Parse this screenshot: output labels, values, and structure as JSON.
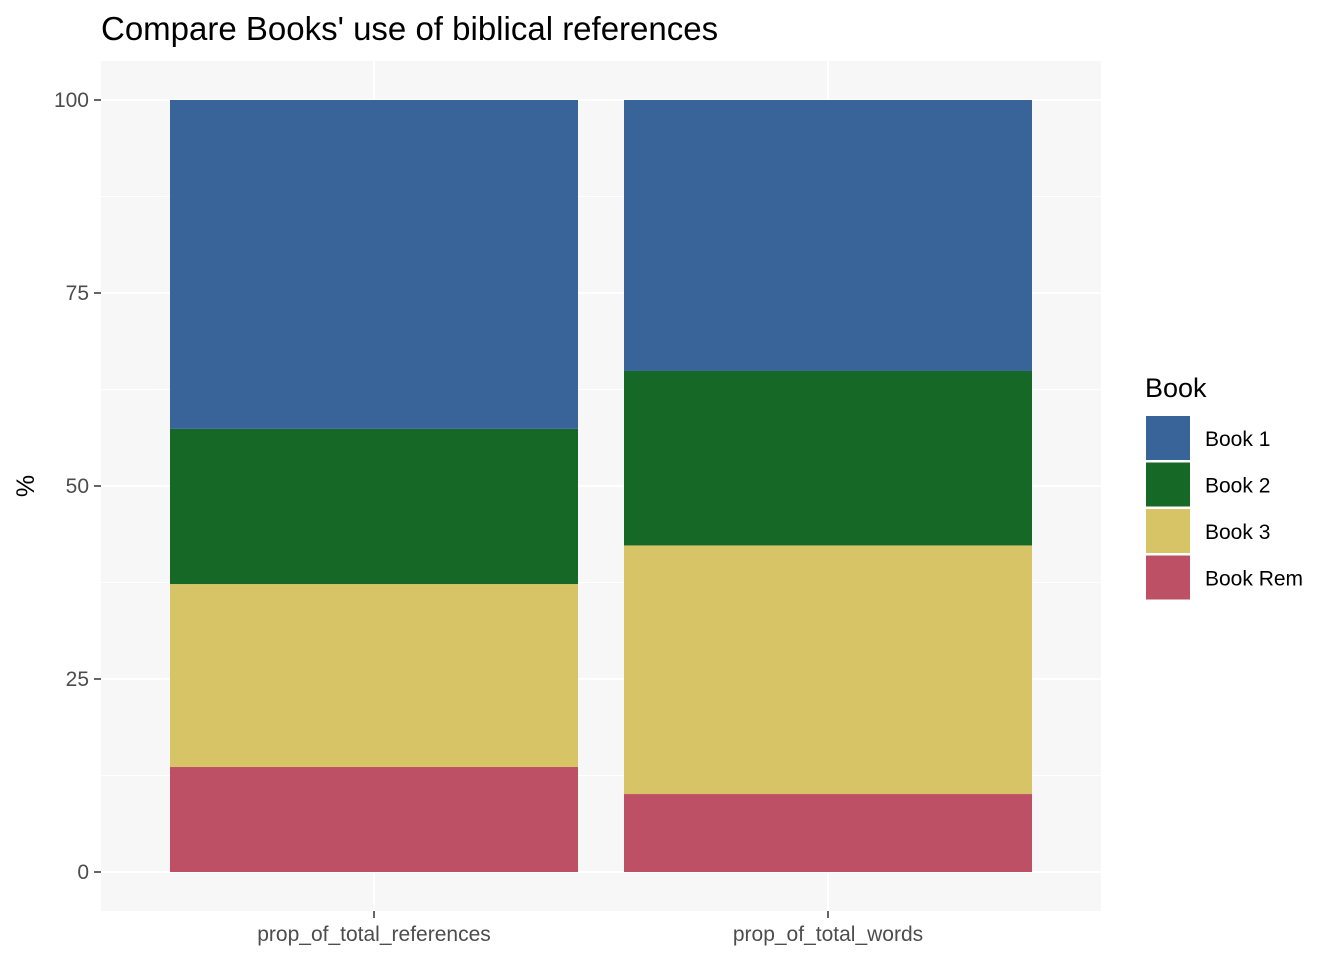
{
  "chart_data": {
    "type": "bar",
    "stacked": true,
    "title": "Compare Books' use of biblical references",
    "xlabel": "",
    "ylabel": "%",
    "ylim": [
      0,
      100
    ],
    "yticks": [
      0,
      25,
      50,
      75,
      100
    ],
    "grid": true,
    "legend_position": "right",
    "legend_title": "Book",
    "categories": [
      "prop_of_total_references",
      "prop_of_total_words"
    ],
    "series": [
      {
        "name": "Book 1",
        "color": "#38649a",
        "values": [
          42.6,
          35.1
        ]
      },
      {
        "name": "Book 2",
        "color": "#166827",
        "values": [
          20.1,
          22.6
        ]
      },
      {
        "name": "Book 3",
        "color": "#d7c466",
        "values": [
          23.7,
          32.2
        ]
      },
      {
        "name": "Book Rem",
        "color": "#be5066",
        "values": [
          13.6,
          10.1
        ]
      }
    ],
    "panel_background": "#f7f7f7",
    "gridline_color": "#ffffff"
  }
}
